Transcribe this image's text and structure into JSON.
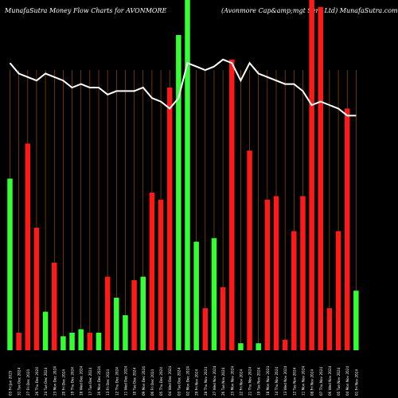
{
  "header": {
    "left": "MunafaSutra  Money Flow  Charts for AVONMORE",
    "right": "(Avonmore   Cap&amp;mgt Serv   Ltd) MunafaSutra.com"
  },
  "colors": {
    "background": "#000000",
    "gridline": "#b35900",
    "up": "#33ff33",
    "down": "#ff1a1a",
    "line": "#ffffff",
    "label": "#ffffff"
  },
  "chart_data": {
    "type": "bar",
    "ylim": [
      0,
      100
    ],
    "grid": true,
    "categories": [
      "03 Fri Jan 2025",
      "31 Tue Dec 2024",
      "27 Fri Dec 2024",
      "26 Thu Dec 2024",
      "24 Tue Dec 2024",
      "23 Mon Dec 2024",
      "20 Fri Dec 2024",
      "19 Thu Dec 2024",
      "18 Wed Dec 2024",
      "17 Tue Dec 2024",
      "16 Mon Dec 2024",
      "13 Fri Dec 2024",
      "12 Thu Dec 2024",
      "11 Wed Dec 2024",
      "10 Tue Dec 2024",
      "09 Mon Dec 2024",
      "06 Fri Dec 2024",
      "05 Thu Dec 2024",
      "04 Wed Dec 2024",
      "03 Tue Dec 2024",
      "02 Mon Dec 2024",
      "29 Fri Nov 2024",
      "28 Thu Nov 2024",
      "27 Wed Nov 2024",
      "26 Tue Nov 2024",
      "25 Mon Nov 2024",
      "22 Fri Nov 2024",
      "21 Thu Nov 2024",
      "19 Tue Nov 2024",
      "18 Mon Nov 2024",
      "14 Thu Nov 2024",
      "13 Wed Nov 2024",
      "12 Tue Nov 2024",
      "11 Mon Nov 2024",
      "08 Fri Nov 2024",
      "07 Thu Nov 2024",
      "06 Wed Nov 2024",
      "05 Tue Nov 2024",
      "04 Mon Nov 2024",
      "01 Fri Nov 2024"
    ],
    "bar_values": [
      49,
      5,
      59,
      35,
      11,
      25,
      4,
      5,
      6,
      5,
      5,
      21,
      15,
      10,
      20,
      21,
      45,
      43,
      75,
      90,
      100,
      31,
      12,
      32,
      18,
      83,
      2,
      57,
      2,
      43,
      44,
      3,
      34,
      44,
      100,
      98,
      12,
      34,
      69,
      17
    ],
    "bar_colors": [
      "up",
      "down",
      "down",
      "down",
      "up",
      "down",
      "up",
      "up",
      "up",
      "down",
      "up",
      "down",
      "up",
      "up",
      "down",
      "up",
      "down",
      "down",
      "down",
      "up",
      "up",
      "up",
      "down",
      "up",
      "down",
      "down",
      "up",
      "down",
      "up",
      "down",
      "down",
      "down",
      "down",
      "down",
      "down",
      "down",
      "down",
      "down",
      "down",
      "up"
    ],
    "line_values": [
      82,
      79,
      78,
      77,
      79,
      78,
      77,
      75,
      76,
      75,
      75,
      73,
      74,
      74,
      74,
      75,
      72,
      71,
      69,
      72,
      82,
      81,
      80,
      81,
      83,
      82,
      77,
      82,
      79,
      78,
      77,
      76,
      76,
      74,
      70,
      71,
      70,
      69,
      67,
      67
    ]
  }
}
